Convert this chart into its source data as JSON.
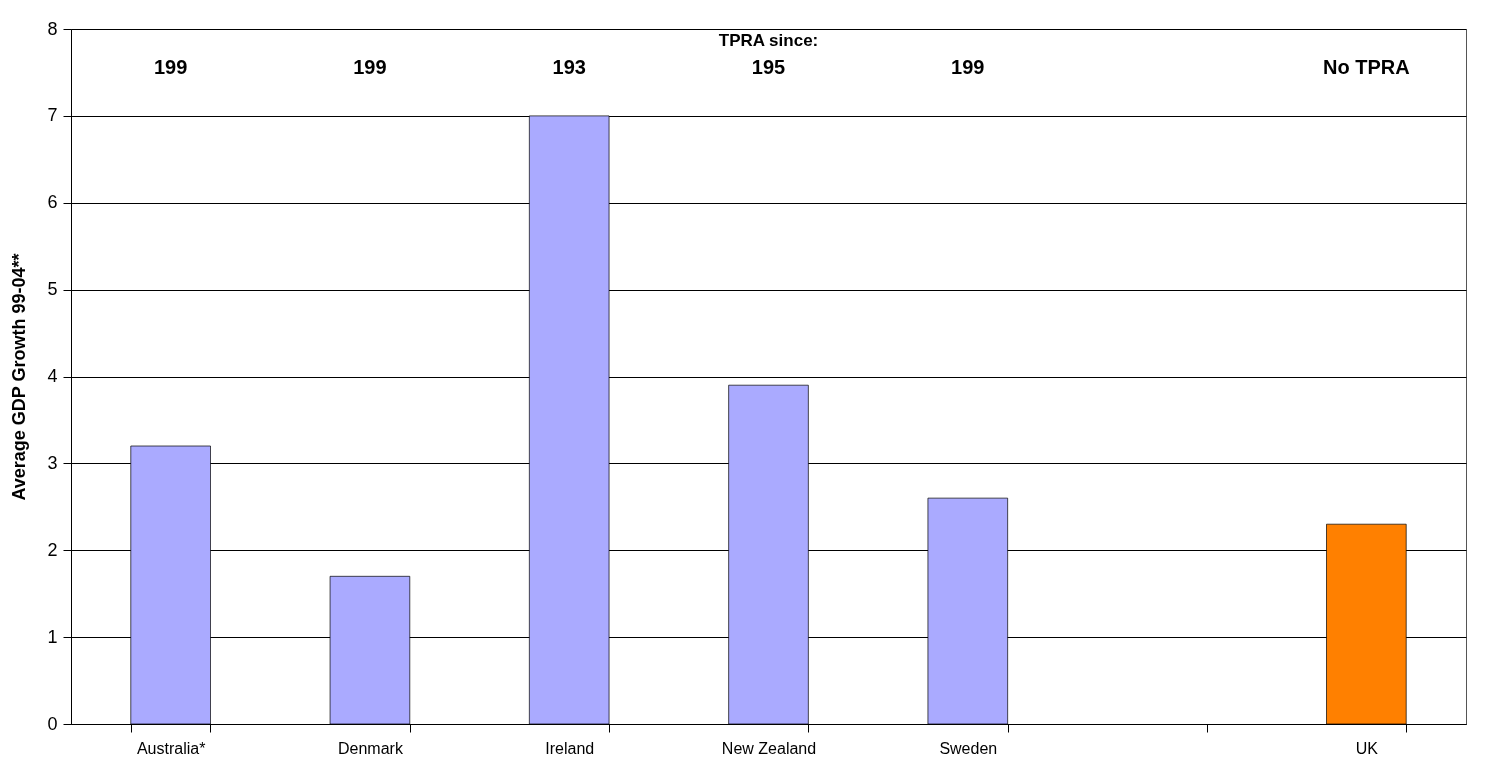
{
  "chart_data": {
    "type": "bar",
    "ylabel": "Average  GDP  Growth  99-04**",
    "categories": [
      "Australia*",
      "Denmark",
      "Ireland",
      "New Zealand",
      "Sweden",
      null,
      "UK"
    ],
    "values": [
      3.2,
      1.7,
      7.0,
      3.9,
      2.6,
      null,
      2.3
    ],
    "colors": [
      "#aaaaff",
      "#aaaaff",
      "#aaaaff",
      "#aaaaff",
      "#aaaaff",
      "#aaaaff",
      "#ff8000"
    ],
    "ylim": [
      0,
      8
    ],
    "yticks": [
      0,
      1,
      2,
      3,
      4,
      5,
      6,
      7,
      8
    ],
    "grid": "y",
    "annotations": [
      "TPRA  since:",
      "199",
      "199",
      "193",
      "195",
      "199",
      "No  TPRA"
    ]
  }
}
